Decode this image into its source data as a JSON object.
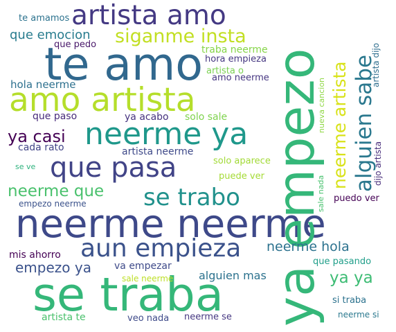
{
  "words": [
    {
      "text": "neerme neerme",
      "color": "#3e4989"
    },
    {
      "text": "se traba",
      "color": "#35b779"
    },
    {
      "text": "te amo",
      "color": "#31688e"
    },
    {
      "text": "ya empezo",
      "color": "#35b779"
    },
    {
      "text": "amo artista",
      "color": "#b5de2b"
    },
    {
      "text": "artista amo",
      "color": "#443983"
    },
    {
      "text": "neerme ya",
      "color": "#1f988b"
    },
    {
      "text": "que pasa",
      "color": "#414487"
    },
    {
      "text": "aun empieza",
      "color": "#3b528b"
    },
    {
      "text": "se trabo",
      "color": "#21918c"
    },
    {
      "text": "alguien sabe",
      "color": "#2a788e"
    },
    {
      "text": "neerme artista",
      "color": "#d8e219"
    },
    {
      "text": "siganme insta",
      "color": "#c2df23"
    },
    {
      "text": "neerme que",
      "color": "#4ac16d"
    },
    {
      "text": "neerme hola",
      "color": "#2c728e"
    },
    {
      "text": "empezo ya",
      "color": "#3b528b"
    },
    {
      "text": "ya casi",
      "color": "#440154"
    },
    {
      "text": "que emocion",
      "color": "#287c8e"
    },
    {
      "text": "ya ya",
      "color": "#3dbc74"
    },
    {
      "text": "alguien mas",
      "color": "#2c728e"
    },
    {
      "text": "te amamos",
      "color": "#2c728e"
    },
    {
      "text": "que pedo",
      "color": "#481769"
    },
    {
      "text": "traba neerme",
      "color": "#86d549"
    },
    {
      "text": "hora empieza",
      "color": "#453781"
    },
    {
      "text": "artista o",
      "color": "#7ad151"
    },
    {
      "text": "amo neerme",
      "color": "#453581"
    },
    {
      "text": "hola neerme",
      "color": "#2d708e"
    },
    {
      "text": "que paso",
      "color": "#472a7a"
    },
    {
      "text": "ya acabo",
      "color": "#46327e"
    },
    {
      "text": "solo sale",
      "color": "#7fd34e"
    },
    {
      "text": "cada rato",
      "color": "#414487"
    },
    {
      "text": "artista neerme",
      "color": "#3e4989"
    },
    {
      "text": "se ve",
      "color": "#2db27d"
    },
    {
      "text": "solo aparece",
      "color": "#a2da37"
    },
    {
      "text": "puede ver",
      "color": "#a5db36"
    },
    {
      "text": "empezo neerme",
      "color": "#3b528b"
    },
    {
      "text": "mis ahorro",
      "color": "#440154"
    },
    {
      "text": "va empezar",
      "color": "#3e4a89"
    },
    {
      "text": "que pasando",
      "color": "#1f9e89"
    },
    {
      "text": "sale neerme",
      "color": "#bddf26"
    },
    {
      "text": "si traba",
      "color": "#2c728e"
    },
    {
      "text": "artista te",
      "color": "#4ac16d"
    },
    {
      "text": "veo nada",
      "color": "#3e4a89"
    },
    {
      "text": "neerme se",
      "color": "#453781"
    },
    {
      "text": "neerme si",
      "color": "#2a788e"
    },
    {
      "text": "puedo ver",
      "color": "#440154"
    },
    {
      "text": "nueva cancion",
      "color": "#8fd744"
    },
    {
      "text": "artista dijo",
      "color": "#2e6e8e"
    },
    {
      "text": "dijo artista",
      "color": "#472c7a"
    },
    {
      "text": "sale nada",
      "color": "#48c16e"
    }
  ]
}
